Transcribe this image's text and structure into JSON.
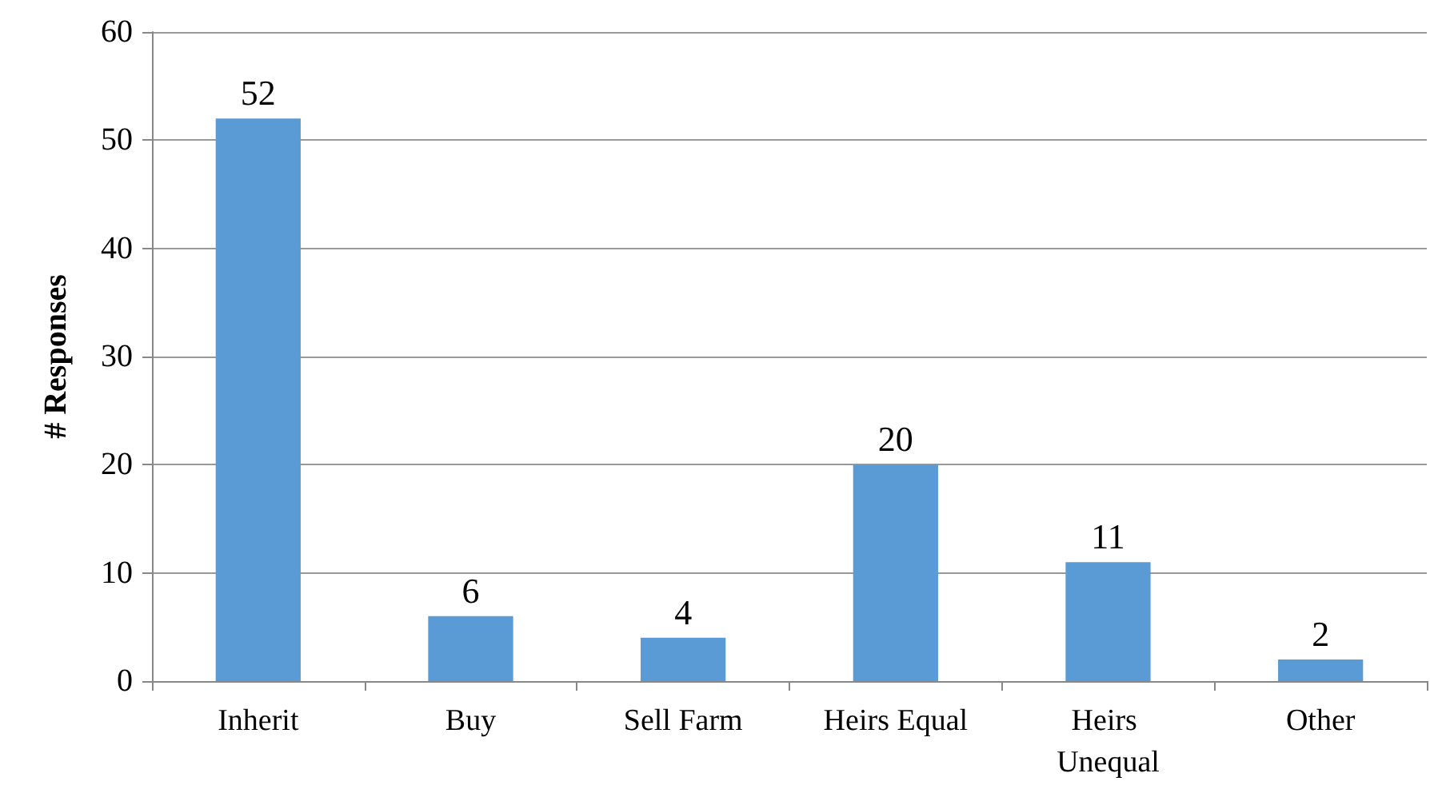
{
  "chart_data": {
    "type": "bar",
    "ylabel": "# Responses",
    "categories": [
      "Inherit",
      "Buy",
      "Sell Farm",
      "Heirs Equal",
      "Heirs Unequal",
      "Other"
    ],
    "values": [
      52,
      6,
      4,
      20,
      11,
      2
    ],
    "color": "#5b9bd5",
    "ylim": [
      0,
      60
    ],
    "yticks": [
      0,
      10,
      20,
      30,
      40,
      50,
      60
    ],
    "grid": "y",
    "data_labels": true
  }
}
